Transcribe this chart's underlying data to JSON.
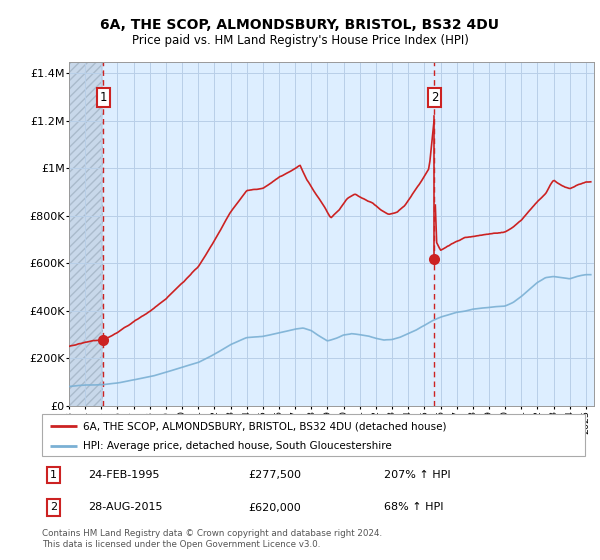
{
  "title": "6A, THE SCOP, ALMONDSBURY, BRISTOL, BS32 4DU",
  "subtitle": "Price paid vs. HM Land Registry's House Price Index (HPI)",
  "hpi_label": "HPI: Average price, detached house, South Gloucestershire",
  "property_label": "6A, THE SCOP, ALMONDSBURY, BRISTOL, BS32 4DU (detached house)",
  "footnote": "Contains HM Land Registry data © Crown copyright and database right 2024.\nThis data is licensed under the Open Government Licence v3.0.",
  "sale1_date": "24-FEB-1995",
  "sale1_price": 277500,
  "sale1_hpi": "207% ↑ HPI",
  "sale2_date": "28-AUG-2015",
  "sale2_price": 620000,
  "sale2_hpi": "68% ↑ HPI",
  "sale1_x": 1995.12,
  "sale2_x": 2015.62,
  "ylim_min": 0,
  "ylim_max": 1450000,
  "xlim_min": 1993.0,
  "xlim_max": 2025.5,
  "hpi_color": "#7ab0d4",
  "property_color": "#cc2222",
  "dashed_line_color": "#cc2222",
  "bg_color": "#ddeeff",
  "grid_color": "#b8cfe8",
  "hatch_color": "#c8d8e8"
}
